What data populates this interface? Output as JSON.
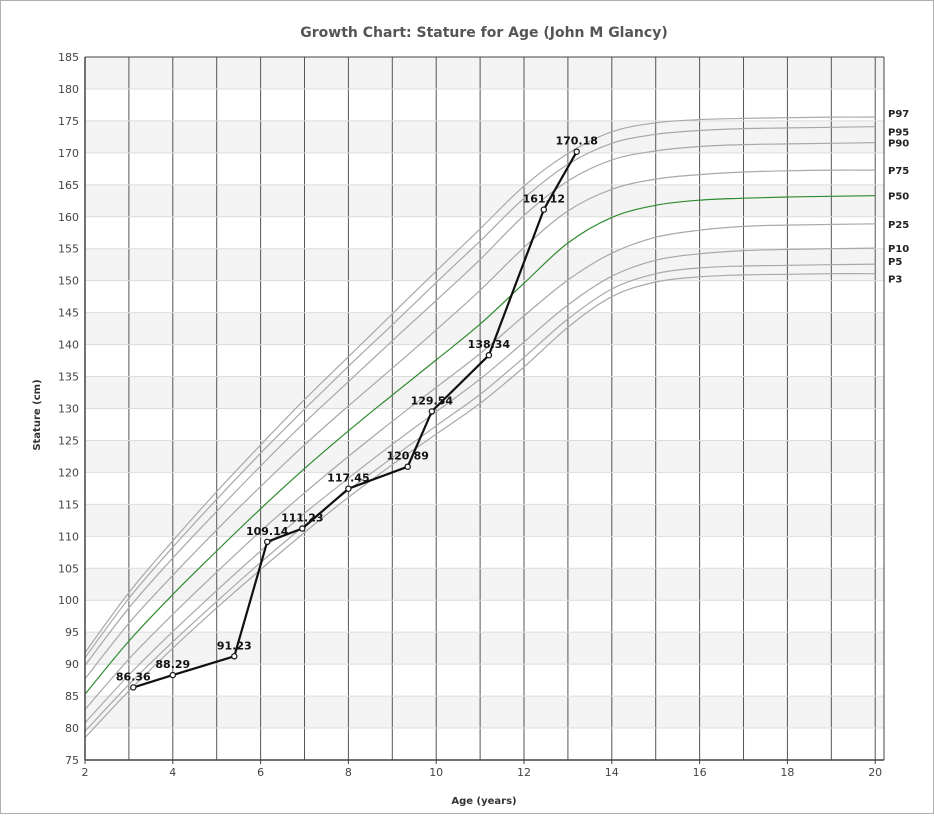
{
  "chart_data": {
    "type": "line",
    "title": "Growth Chart: Stature for Age (John M Glancy)",
    "xlabel": "Age (years)",
    "ylabel": "Stature (cm)",
    "xlim": [
      2,
      20.2
    ],
    "ylim": [
      75,
      185
    ],
    "x_ticks": [
      2,
      4,
      6,
      8,
      10,
      12,
      14,
      16,
      18,
      20
    ],
    "y_ticks": [
      75,
      80,
      85,
      90,
      95,
      100,
      105,
      110,
      115,
      120,
      125,
      130,
      135,
      140,
      145,
      150,
      155,
      160,
      165,
      170,
      175,
      180,
      185
    ],
    "vertical_grid_step_years": 1,
    "grid": true,
    "percentile_x": [
      2,
      3,
      4,
      5,
      6,
      7,
      8,
      9,
      10,
      11,
      12,
      13,
      14,
      15,
      16,
      17,
      18,
      19,
      20
    ],
    "percentiles": [
      {
        "name": "P3",
        "color": "#a8a8a8",
        "values": [
          78.5,
          85.8,
          92.5,
          98.8,
          104.8,
          110.6,
          116.1,
          121.2,
          126.0,
          130.8,
          136.5,
          142.7,
          147.5,
          149.8,
          150.6,
          150.9,
          151.0,
          151.1,
          151.1
        ]
      },
      {
        "name": "P5",
        "color": "#a8a8a8",
        "values": [
          79.5,
          86.8,
          93.5,
          99.8,
          105.9,
          111.7,
          117.2,
          122.3,
          127.3,
          132.2,
          138.0,
          144.0,
          148.7,
          151.1,
          152.0,
          152.3,
          152.4,
          152.5,
          152.6
        ]
      },
      {
        "name": "P10",
        "color": "#a8a8a8",
        "values": [
          80.8,
          88.3,
          95.1,
          101.5,
          107.7,
          113.6,
          119.1,
          124.4,
          129.5,
          134.6,
          140.4,
          146.2,
          150.7,
          153.2,
          154.2,
          154.7,
          154.9,
          155.0,
          155.1
        ]
      },
      {
        "name": "P25",
        "color": "#a8a8a8",
        "values": [
          82.9,
          90.8,
          97.8,
          104.4,
          110.8,
          116.8,
          122.5,
          128.0,
          133.3,
          138.6,
          144.5,
          150.1,
          154.3,
          156.8,
          157.9,
          158.5,
          158.7,
          158.8,
          158.9
        ]
      },
      {
        "name": "P50",
        "color": "#2e8b2e",
        "values": [
          85.3,
          93.6,
          100.9,
          107.7,
          114.3,
          120.6,
          126.5,
          132.1,
          137.6,
          143.2,
          149.6,
          155.9,
          159.9,
          161.8,
          162.6,
          162.9,
          163.1,
          163.2,
          163.3
        ]
      },
      {
        "name": "P75",
        "color": "#a8a8a8",
        "values": [
          87.7,
          96.4,
          103.9,
          111.0,
          117.8,
          124.3,
          130.4,
          136.3,
          142.3,
          148.5,
          155.2,
          160.9,
          164.3,
          165.9,
          166.6,
          167.0,
          167.2,
          167.3,
          167.3
        ]
      },
      {
        "name": "P90",
        "color": "#a8a8a8",
        "values": [
          89.8,
          98.8,
          106.6,
          113.9,
          121.0,
          127.8,
          134.2,
          140.6,
          146.9,
          153.3,
          160.2,
          165.6,
          168.9,
          170.3,
          171.0,
          171.3,
          171.4,
          171.5,
          171.6
        ]
      },
      {
        "name": "P95",
        "color": "#a8a8a8",
        "values": [
          91.0,
          100.3,
          108.3,
          115.8,
          123.0,
          129.9,
          136.6,
          143.1,
          149.7,
          156.2,
          162.9,
          168.2,
          171.5,
          172.9,
          173.5,
          173.8,
          173.9,
          174.0,
          174.1
        ]
      },
      {
        "name": "P97",
        "color": "#a8a8a8",
        "values": [
          91.8,
          101.2,
          109.3,
          117.0,
          124.3,
          131.4,
          138.1,
          144.8,
          151.5,
          158.1,
          164.8,
          169.9,
          173.3,
          174.7,
          175.2,
          175.4,
          175.5,
          175.6,
          175.6
        ]
      }
    ],
    "series": [
      {
        "name": "",
        "color": "#111111",
        "points": [
          {
            "x": 3.1,
            "y": 86.36,
            "label": "86.36"
          },
          {
            "x": 4.0,
            "y": 88.29,
            "label": "88.29"
          },
          {
            "x": 5.4,
            "y": 91.23,
            "label": "91.23"
          },
          {
            "x": 6.15,
            "y": 109.14,
            "label": "109.14"
          },
          {
            "x": 6.95,
            "y": 111.23,
            "label": "111.23"
          },
          {
            "x": 8.0,
            "y": 117.45,
            "label": "117.45"
          },
          {
            "x": 9.35,
            "y": 120.89,
            "label": "120.89"
          },
          {
            "x": 9.9,
            "y": 129.54,
            "label": "129.54"
          },
          {
            "x": 11.2,
            "y": 138.34,
            "label": "138.34"
          },
          {
            "x": 12.45,
            "y": 161.12,
            "label": "161.12"
          },
          {
            "x": 13.2,
            "y": 170.18,
            "label": "170.18"
          }
        ]
      }
    ]
  }
}
